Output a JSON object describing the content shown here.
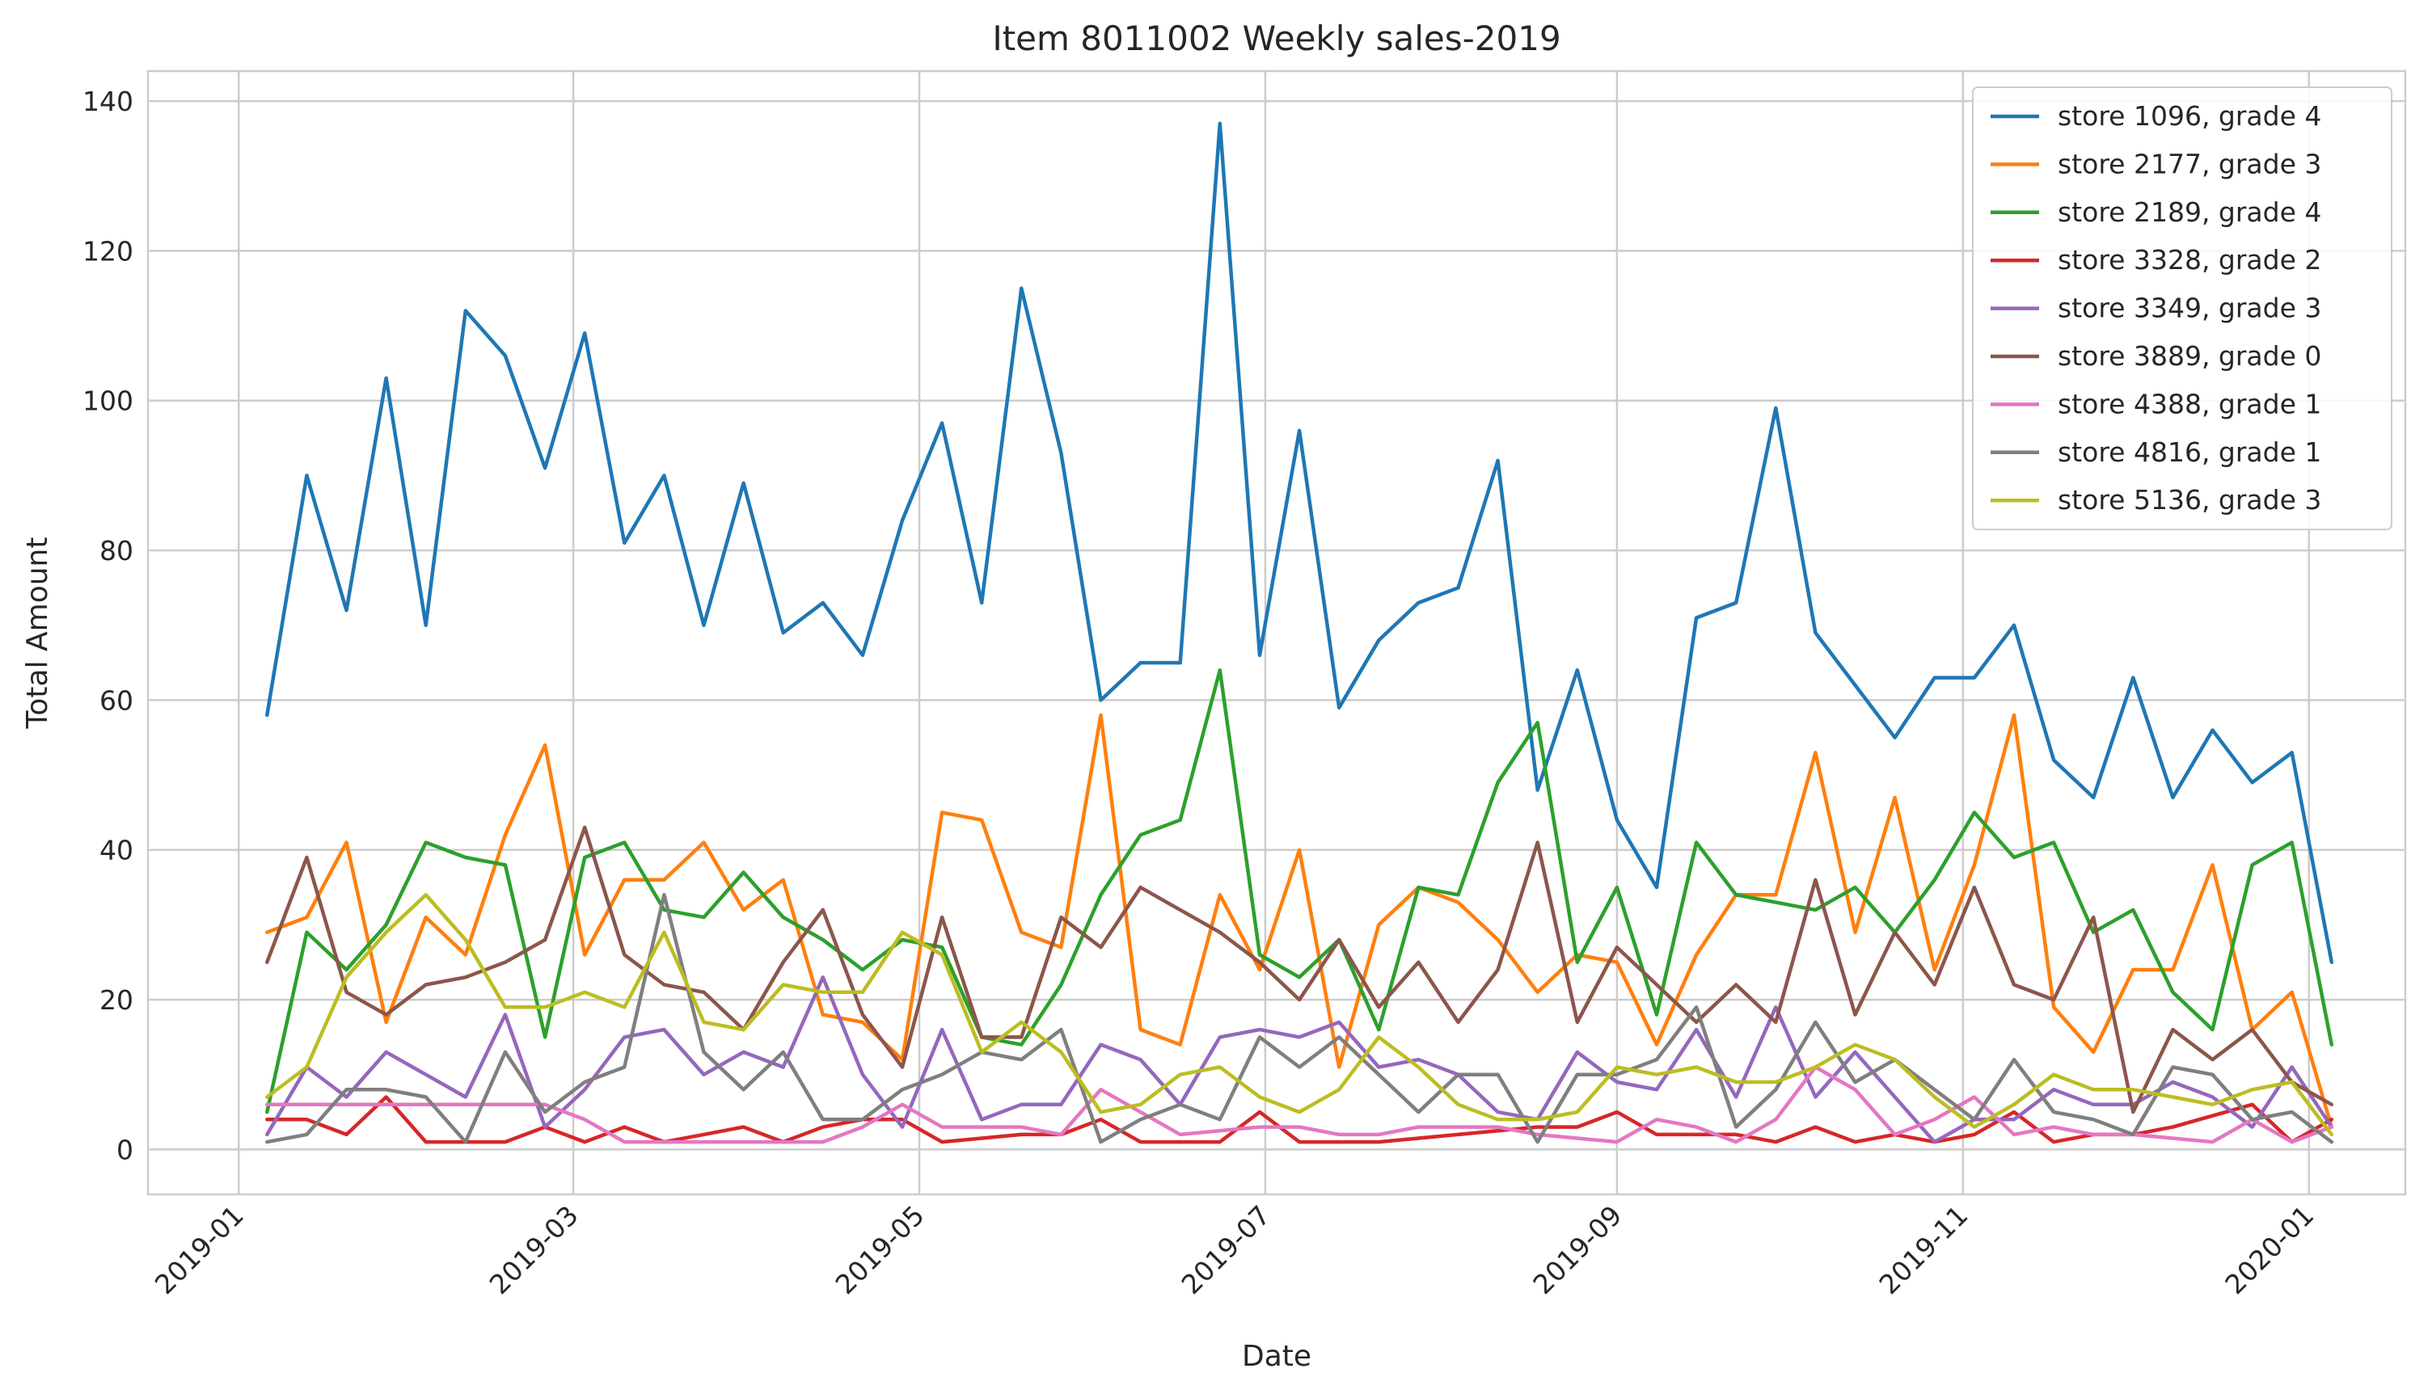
{
  "chart_data": {
    "type": "line",
    "title": "Item 8011002 Weekly sales-2019",
    "xlabel": "Date",
    "ylabel": "Total Amount",
    "x_range": [
      "2018-12-16",
      "2020-01-18"
    ],
    "ylim": [
      -6,
      144
    ],
    "grid": true,
    "legend_position": "top-right",
    "x_ticks": [
      "2019-01",
      "2019-03",
      "2019-05",
      "2019-07",
      "2019-09",
      "2019-11",
      "2020-01"
    ],
    "y_ticks": [
      0,
      20,
      40,
      60,
      80,
      100,
      120,
      140
    ],
    "x": [
      "2019-01-06",
      "2019-01-13",
      "2019-01-20",
      "2019-01-27",
      "2019-02-03",
      "2019-02-10",
      "2019-02-17",
      "2019-02-24",
      "2019-03-03",
      "2019-03-10",
      "2019-03-17",
      "2019-03-24",
      "2019-03-31",
      "2019-04-07",
      "2019-04-14",
      "2019-04-21",
      "2019-04-28",
      "2019-05-05",
      "2019-05-12",
      "2019-05-19",
      "2019-05-26",
      "2019-06-02",
      "2019-06-09",
      "2019-06-16",
      "2019-06-23",
      "2019-06-30",
      "2019-07-07",
      "2019-07-14",
      "2019-07-21",
      "2019-07-28",
      "2019-08-04",
      "2019-08-11",
      "2019-08-18",
      "2019-08-25",
      "2019-09-01",
      "2019-09-08",
      "2019-09-15",
      "2019-09-22",
      "2019-09-29",
      "2019-10-06",
      "2019-10-13",
      "2019-10-20",
      "2019-10-27",
      "2019-11-03",
      "2019-11-10",
      "2019-11-17",
      "2019-11-24",
      "2019-12-01",
      "2019-12-08",
      "2019-12-15",
      "2019-12-22",
      "2019-12-29",
      "2020-01-05"
    ],
    "series": [
      {
        "name": "store 1096, grade 4",
        "color": "#1f77b4",
        "values": [
          58,
          90,
          72,
          103,
          70,
          112,
          106,
          91,
          109,
          81,
          90,
          70,
          89,
          69,
          73,
          66,
          84,
          97,
          73,
          115,
          93,
          60,
          65,
          65,
          137,
          66,
          96,
          59,
          68,
          73,
          75,
          92,
          48,
          64,
          44,
          35,
          71,
          73,
          99,
          69,
          62,
          55,
          63,
          63,
          70,
          52,
          47,
          63,
          47,
          56,
          49,
          53,
          25
        ]
      },
      {
        "name": "store 2177, grade 3",
        "color": "#ff7f0e",
        "values": [
          29,
          31,
          41,
          17,
          31,
          26,
          42,
          54,
          26,
          36,
          36,
          41,
          32,
          36,
          18,
          17,
          12,
          45,
          44,
          29,
          27,
          58,
          16,
          14,
          34,
          24,
          40,
          11,
          30,
          35,
          33,
          28,
          21,
          26,
          25,
          14,
          26,
          34,
          34,
          53,
          29,
          47,
          24,
          38,
          58,
          19,
          13,
          24,
          24,
          38,
          16,
          21,
          3
        ]
      },
      {
        "name": "store 2189, grade 4",
        "color": "#2ca02c",
        "values": [
          5,
          29,
          24,
          30,
          41,
          39,
          38,
          15,
          39,
          41,
          32,
          31,
          37,
          31,
          28,
          24,
          28,
          27,
          15,
          14,
          22,
          34,
          42,
          44,
          64,
          26,
          23,
          28,
          16,
          35,
          34,
          49,
          57,
          25,
          35,
          18,
          41,
          34,
          33,
          32,
          35,
          29,
          36,
          45,
          39,
          41,
          29,
          32,
          21,
          16,
          38,
          41,
          14
        ]
      },
      {
        "name": "store 3328, grade 2",
        "color": "#d62728",
        "values": [
          4,
          4,
          2,
          7,
          1,
          1,
          1,
          3,
          1,
          3,
          1,
          2,
          3,
          1,
          3,
          4,
          4,
          1,
          1.5,
          2,
          2,
          4,
          1,
          1,
          1,
          5,
          1,
          1,
          1,
          1.5,
          2,
          2.5,
          3,
          3,
          5,
          2,
          2,
          2,
          1,
          3,
          1,
          2,
          1,
          2,
          5,
          1,
          2,
          2,
          3,
          4.5,
          6,
          1,
          4
        ]
      },
      {
        "name": "store 3349, grade 3",
        "color": "#9467bd",
        "values": [
          2,
          11,
          7,
          13,
          10,
          7,
          18,
          3,
          8,
          15,
          16,
          10,
          13,
          11,
          23,
          10,
          3,
          16,
          4,
          6,
          6,
          14,
          12,
          6,
          15,
          16,
          15,
          17,
          11,
          12,
          10,
          5,
          4,
          13,
          9,
          8,
          16,
          7,
          19,
          7,
          13,
          7,
          1,
          4,
          4,
          8,
          6,
          6,
          9,
          7,
          3,
          11,
          3
        ]
      },
      {
        "name": "store 3889, grade 0",
        "color": "#8c564b",
        "values": [
          25,
          39,
          21,
          18,
          22,
          23,
          25,
          28,
          43,
          26,
          22,
          21,
          16,
          25,
          32,
          18,
          11,
          31,
          15,
          15,
          31,
          27,
          35,
          32,
          29,
          25,
          20,
          28,
          19,
          25,
          17,
          24,
          41,
          17,
          27,
          22,
          17,
          22,
          17,
          36,
          18,
          29,
          22,
          35,
          22,
          20,
          31,
          5,
          16,
          12,
          16,
          9,
          6
        ]
      },
      {
        "name": "store 4388, grade 1",
        "color": "#e377c2",
        "values": [
          6,
          6,
          6,
          6,
          6,
          6,
          6,
          6,
          4,
          1,
          1,
          1,
          1,
          1,
          1,
          3,
          6,
          3,
          3,
          3,
          2,
          8,
          5,
          2,
          2.5,
          3,
          3,
          2,
          2,
          3,
          3,
          3,
          2,
          1.5,
          1,
          4,
          3,
          1,
          4,
          11,
          8,
          2,
          4,
          7,
          2,
          3,
          2,
          2,
          1.5,
          1,
          4,
          1,
          3
        ]
      },
      {
        "name": "store 4816, grade 1",
        "color": "#7f7f7f",
        "values": [
          1,
          2,
          8,
          8,
          7,
          1,
          13,
          5,
          9,
          11,
          34,
          13,
          8,
          13,
          4,
          4,
          8,
          10,
          13,
          12,
          16,
          1,
          4,
          6,
          4,
          15,
          11,
          15,
          10,
          5,
          10,
          10,
          1,
          10,
          10,
          12,
          19,
          3,
          8,
          17,
          9,
          12,
          8,
          4,
          12,
          5,
          4,
          2,
          11,
          10,
          4,
          5,
          1
        ]
      },
      {
        "name": "store 5136, grade 3",
        "color": "#bcbd22",
        "values": [
          7,
          11,
          23,
          29,
          34,
          28,
          19,
          19,
          21,
          19,
          29,
          17,
          16,
          22,
          21,
          21,
          29,
          26,
          13,
          17,
          13,
          5,
          6,
          10,
          11,
          7,
          5,
          8,
          15,
          11,
          6,
          4,
          4,
          5,
          11,
          10,
          11,
          9,
          9,
          11,
          14,
          12,
          7,
          3,
          6,
          10,
          8,
          8,
          7,
          6,
          8,
          9,
          2
        ]
      }
    ]
  }
}
